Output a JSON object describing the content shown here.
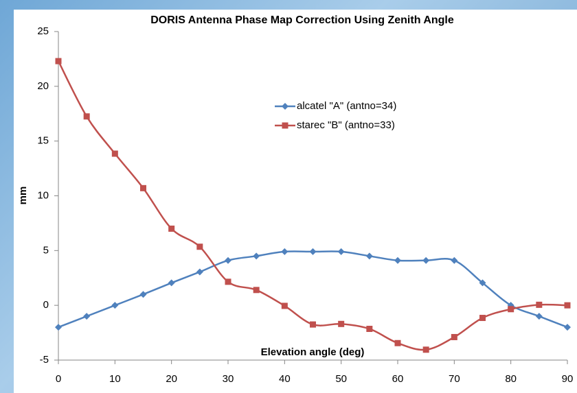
{
  "chart_data": {
    "type": "line",
    "title": "DORIS Antenna Phase Map Correction Using Zenith Angle",
    "x_label": "Elevation angle (deg)",
    "y_label": "mm",
    "x": [
      0,
      5,
      10,
      15,
      20,
      25,
      30,
      35,
      40,
      45,
      50,
      55,
      60,
      65,
      70,
      75,
      80,
      85,
      90
    ],
    "series": [
      {
        "name": "alcatel \"A\" (antno=34)",
        "color": "#4f81bd",
        "marker": "diamond",
        "values": [
          -2,
          -1,
          0,
          1,
          2.05,
          3.05,
          4.1,
          4.5,
          4.9,
          4.9,
          4.9,
          4.5,
          4.1,
          4.1,
          4.1,
          2.05,
          0,
          -1,
          -2
        ]
      },
      {
        "name": "starec \"B\" (antno=33)",
        "color": "#c0504d",
        "marker": "square",
        "values": [
          22.3,
          17.25,
          13.85,
          10.7,
          7.0,
          5.35,
          2.15,
          1.4,
          -0.05,
          -1.75,
          -1.7,
          -2.15,
          -3.45,
          -4.05,
          -2.9,
          -1.15,
          -0.35,
          0.05,
          0
        ]
      }
    ],
    "xlim": [
      0,
      90
    ],
    "xticks": [
      0,
      10,
      20,
      30,
      40,
      50,
      60,
      70,
      80,
      90
    ],
    "ylim": [
      -5,
      25
    ],
    "yticks": [
      -5,
      0,
      5,
      10,
      15,
      20,
      25
    ],
    "grid": false,
    "smooth": true
  }
}
